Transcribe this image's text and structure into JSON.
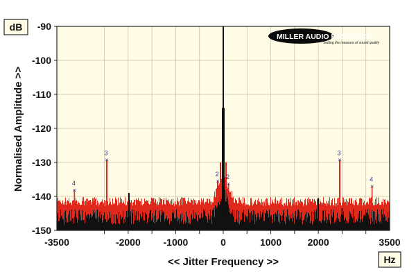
{
  "chart_data": {
    "type": "line",
    "title": "",
    "xlabel": "<< Jitter Frequency >>",
    "ylabel": "Normalised Amplitude >>",
    "y_unit": "dB",
    "x_unit": "Hz",
    "xlim": [
      -3500,
      3500
    ],
    "ylim": [
      -150,
      -90
    ],
    "x_ticks": [
      -3500,
      -2000,
      -1000,
      0,
      1000,
      2000,
      3500
    ],
    "x_tick_labels": [
      "-3500",
      "-2000",
      "-1000",
      "0",
      "1000",
      "2000",
      "3500"
    ],
    "y_ticks": [
      -90,
      -100,
      -110,
      -120,
      -130,
      -140,
      -150
    ],
    "y_tick_labels": [
      "-90",
      "-100",
      "-110",
      "-120",
      "-130",
      "-140",
      "-150"
    ],
    "grid": true,
    "logo": "MILLER AUDIO RESEARCH",
    "logo_tagline": "Setting the measure of sound quality",
    "series": [
      {
        "color": "#e0281c",
        "noise_floor_db": -141.5,
        "peaks": [
          {
            "x": -3130,
            "y": -138.2,
            "label": "4"
          },
          {
            "x": -2450,
            "y": -129.3,
            "label": "3"
          },
          {
            "x": -115,
            "y": -135.5,
            "label": "2"
          },
          {
            "x": -55,
            "y": -130.0
          },
          {
            "x": 55,
            "y": -130.0
          },
          {
            "x": 110,
            "y": -136.3,
            "label": "2"
          },
          {
            "x": 2450,
            "y": -129.3,
            "label": "3"
          },
          {
            "x": 3130,
            "y": -137.0,
            "label": "4"
          }
        ]
      },
      {
        "color": "#111111",
        "noise_floor_db": -146.0,
        "peaks": [
          {
            "x": 0,
            "y": -90.0
          },
          {
            "x": -15,
            "y": -114.0
          },
          {
            "x": 15,
            "y": -114.0
          },
          {
            "x": -1980,
            "y": -139.0
          },
          {
            "x": 2000,
            "y": -140.5
          },
          {
            "x": 2500,
            "y": -143.5
          }
        ]
      }
    ]
  }
}
